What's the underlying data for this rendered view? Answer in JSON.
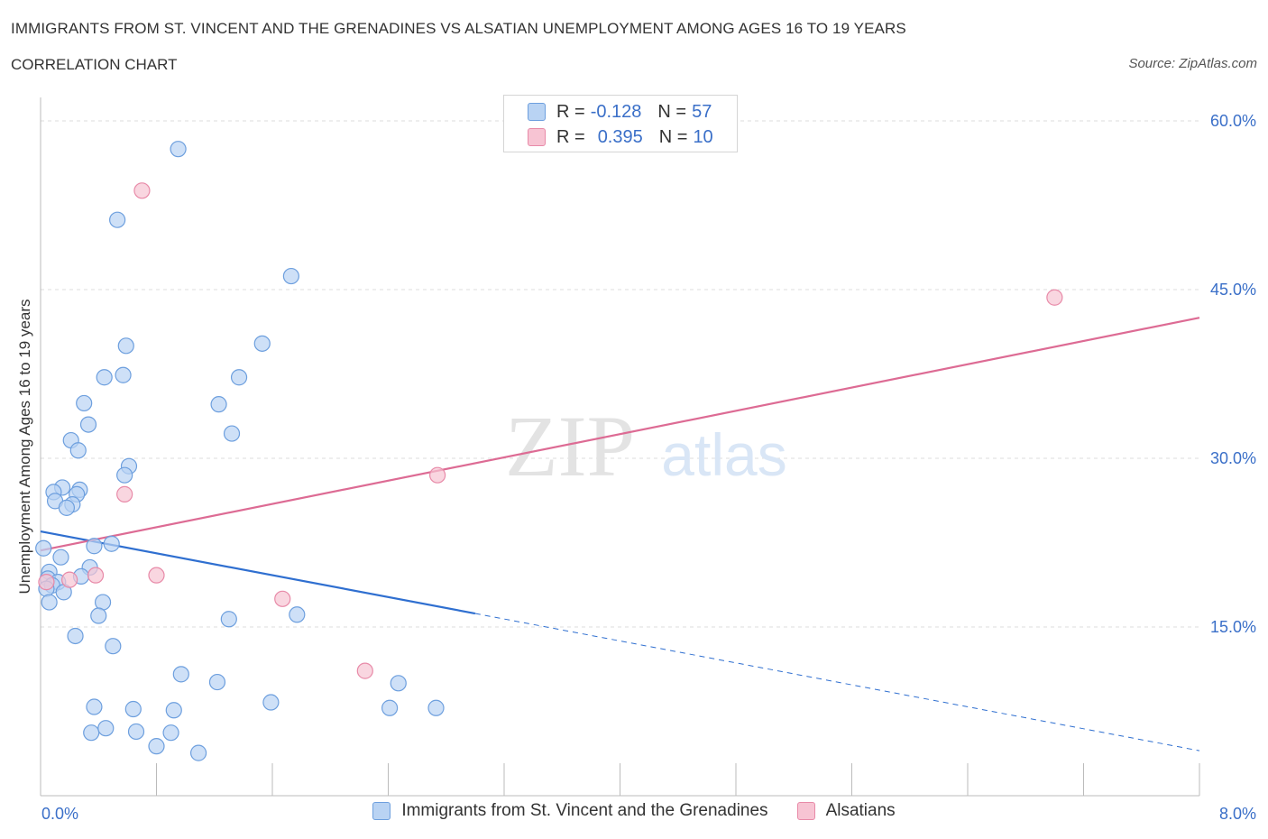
{
  "header": {
    "title": "IMMIGRANTS FROM ST. VINCENT AND THE GRENADINES VS ALSATIAN UNEMPLOYMENT AMONG AGES 16 TO 19 YEARS",
    "subtitle": "CORRELATION CHART",
    "source": "Source: ZipAtlas.com"
  },
  "watermark": {
    "zip": "ZIP",
    "atlas": "atlas"
  },
  "legend": {
    "rows": [
      {
        "r_label": "R =",
        "r_value": "-0.128",
        "n_label": "N =",
        "n_value": "57"
      },
      {
        "r_label": "R =",
        "r_value": "0.395",
        "n_label": "N =",
        "n_value": "10"
      }
    ]
  },
  "colors": {
    "series1_fill": "#b9d3f3",
    "series1_stroke": "#6d9fde",
    "series1_line": "#2f6fd0",
    "series2_fill": "#f7c4d3",
    "series2_stroke": "#e88aa8",
    "series2_line": "#dd6b94",
    "axis_text": "#3a6fc8",
    "grid": "#dddddd"
  },
  "chart_data": {
    "type": "scatter",
    "xlabel": "",
    "ylabel": "Unemployment Among Ages 16 to 19 years",
    "xlim": [
      0,
      8
    ],
    "ylim": [
      0,
      60
    ],
    "x_tick_labels": [
      "0.0%",
      "8.0%"
    ],
    "y_ticks": [
      15,
      30,
      45,
      60
    ],
    "y_tick_labels": [
      "15.0%",
      "30.0%",
      "45.0%",
      "60.0%"
    ],
    "grid": true,
    "legend_position": "top-center",
    "series": [
      {
        "name": "Immigrants from St. Vincent and the Grenadines",
        "points": [
          [
            0.95,
            57.5
          ],
          [
            0.53,
            51.2
          ],
          [
            1.73,
            46.2
          ],
          [
            0.59,
            40.0
          ],
          [
            1.53,
            40.2
          ],
          [
            0.44,
            37.2
          ],
          [
            0.57,
            37.4
          ],
          [
            1.37,
            37.2
          ],
          [
            0.3,
            34.9
          ],
          [
            1.23,
            34.8
          ],
          [
            0.33,
            33.0
          ],
          [
            1.32,
            32.2
          ],
          [
            0.21,
            31.6
          ],
          [
            0.26,
            30.7
          ],
          [
            0.61,
            29.3
          ],
          [
            0.58,
            28.5
          ],
          [
            0.15,
            27.4
          ],
          [
            0.27,
            27.2
          ],
          [
            0.09,
            27.0
          ],
          [
            0.25,
            26.8
          ],
          [
            0.1,
            26.2
          ],
          [
            0.22,
            25.9
          ],
          [
            0.18,
            25.6
          ],
          [
            0.49,
            22.4
          ],
          [
            0.37,
            22.2
          ],
          [
            0.02,
            22.0
          ],
          [
            0.14,
            21.2
          ],
          [
            0.34,
            20.3
          ],
          [
            0.06,
            19.9
          ],
          [
            0.28,
            19.5
          ],
          [
            0.05,
            19.3
          ],
          [
            0.12,
            19.0
          ],
          [
            0.08,
            18.7
          ],
          [
            0.04,
            18.4
          ],
          [
            0.16,
            18.1
          ],
          [
            0.43,
            17.2
          ],
          [
            0.06,
            17.2
          ],
          [
            0.4,
            16.0
          ],
          [
            1.3,
            15.7
          ],
          [
            1.77,
            16.1
          ],
          [
            0.24,
            14.2
          ],
          [
            0.5,
            13.3
          ],
          [
            0.97,
            10.8
          ],
          [
            1.22,
            10.1
          ],
          [
            2.47,
            10.0
          ],
          [
            0.37,
            7.9
          ],
          [
            0.64,
            7.7
          ],
          [
            0.92,
            7.6
          ],
          [
            1.59,
            8.3
          ],
          [
            2.41,
            7.8
          ],
          [
            2.73,
            7.8
          ],
          [
            0.35,
            5.6
          ],
          [
            0.45,
            6.0
          ],
          [
            0.66,
            5.7
          ],
          [
            0.9,
            5.6
          ],
          [
            0.8,
            4.4
          ],
          [
            1.09,
            3.8
          ]
        ],
        "trend": {
          "x": [
            0,
            3.0
          ],
          "y": [
            23.5,
            16.2
          ],
          "dashed_x": [
            3.0,
            8.0
          ],
          "dashed_y": [
            16.2,
            4.0
          ]
        }
      },
      {
        "name": "Alsatians",
        "points": [
          [
            0.7,
            53.8
          ],
          [
            7.0,
            44.3
          ],
          [
            2.74,
            28.5
          ],
          [
            0.58,
            26.8
          ],
          [
            0.04,
            19.0
          ],
          [
            0.2,
            19.2
          ],
          [
            0.38,
            19.6
          ],
          [
            0.8,
            19.6
          ],
          [
            1.67,
            17.5
          ],
          [
            2.24,
            11.1
          ]
        ],
        "trend": {
          "x": [
            0,
            8.0
          ],
          "y": [
            21.8,
            42.5
          ]
        }
      }
    ]
  }
}
